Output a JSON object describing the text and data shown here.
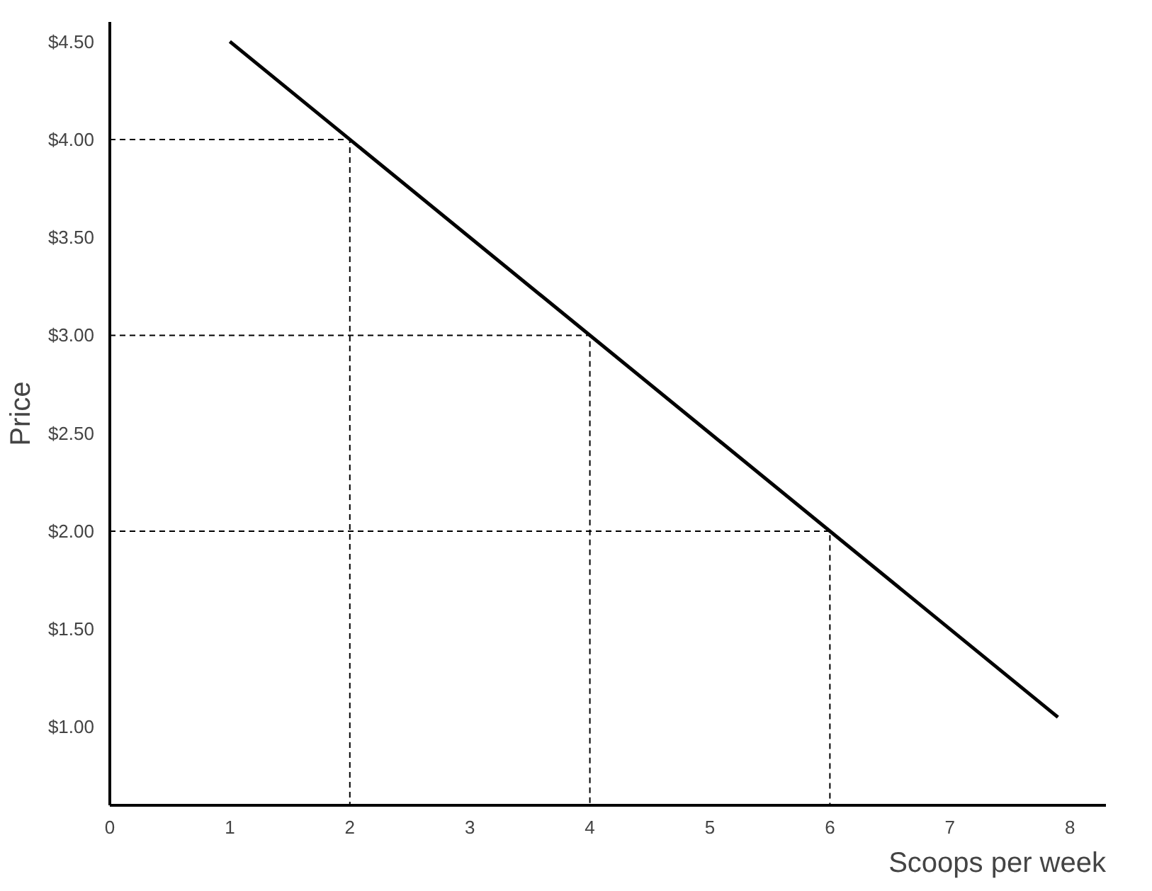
{
  "chart_data": {
    "type": "line",
    "xlabel": "Scoops per week",
    "ylabel": "Price",
    "xlim": [
      0,
      8.3
    ],
    "xticks": [
      0,
      1,
      2,
      3,
      4,
      5,
      6,
      7,
      8
    ],
    "ylim": [
      0.6,
      4.6
    ],
    "yticks": [
      {
        "value": 1,
        "label": "$1.00"
      },
      {
        "value": 1.5,
        "label": "$1.50"
      },
      {
        "value": 2,
        "label": "$2.00"
      },
      {
        "value": 2.5,
        "label": "$2.50"
      },
      {
        "value": 3,
        "label": "$3.00"
      },
      {
        "value": 3.5,
        "label": "$3.50"
      },
      {
        "value": 4,
        "label": "$4.00"
      },
      {
        "value": 4.5,
        "label": "$4.50"
      }
    ],
    "grid": false,
    "series": [
      {
        "color": "#000000",
        "x": [
          1,
          7.9
        ],
        "values": [
          4.5,
          1.05
        ],
        "line_style": "solid"
      },
      {
        "color": "#000000",
        "x": [
          0,
          2,
          2
        ],
        "values": [
          4,
          4,
          0.6
        ],
        "line_style": "dashed"
      },
      {
        "color": "#000000",
        "x": [
          0,
          4,
          4
        ],
        "values": [
          3,
          3,
          0.6
        ],
        "line_style": "dashed"
      },
      {
        "color": "#000000",
        "x": [
          0,
          6,
          6
        ],
        "values": [
          2,
          2,
          0.6
        ],
        "line_style": "dashed"
      }
    ]
  }
}
